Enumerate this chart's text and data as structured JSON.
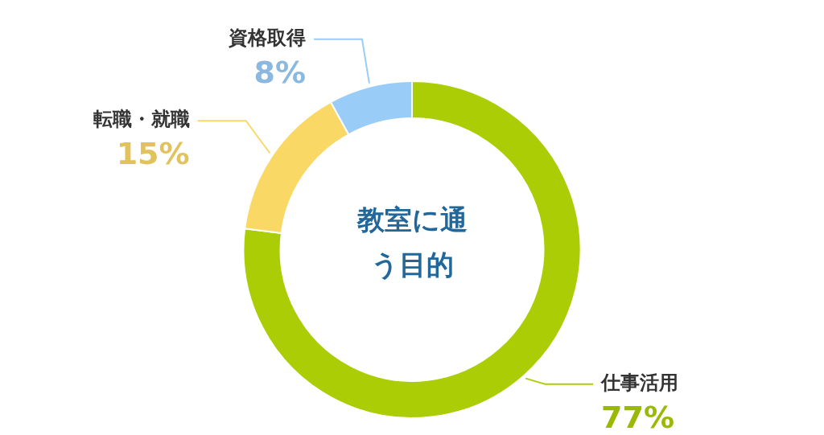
{
  "chart_data": {
    "type": "donut",
    "title": "教室に通う目的",
    "categories": [
      "仕事活用",
      "転職・就職",
      "資格取得"
    ],
    "values": [
      77,
      15,
      8
    ],
    "value_labels": [
      "77%",
      "15%",
      "8%"
    ],
    "colors": [
      "#abcd06",
      "#fad866",
      "#99ccf7"
    ],
    "legend": false
  }
}
